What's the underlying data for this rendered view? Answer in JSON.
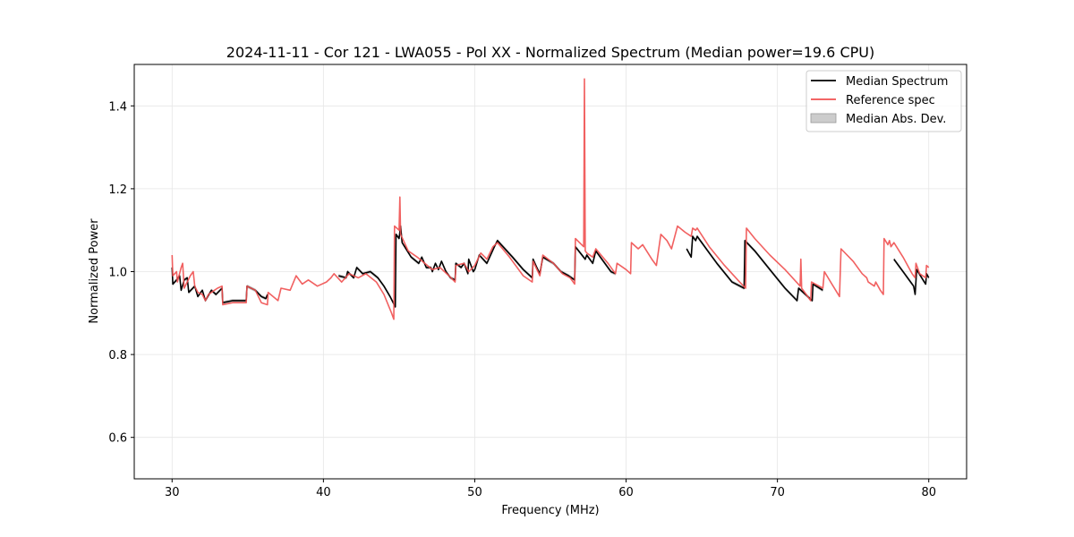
{
  "chart_data": {
    "type": "line",
    "title": "2024-11-11 - Cor 121 - LWA055 - Pol XX - Normalized Spectrum (Median power=19.6 CPU)",
    "xlabel": "Frequency (MHz)",
    "ylabel": "Normalized Power",
    "xlim": [
      27.5,
      82.5
    ],
    "ylim": [
      0.5,
      1.5
    ],
    "xticks": [
      30,
      40,
      50,
      60,
      70,
      80
    ],
    "yticks": [
      0.6,
      0.8,
      1.0,
      1.2,
      1.4
    ],
    "xtick_labels": [
      "30",
      "40",
      "50",
      "60",
      "70",
      "80"
    ],
    "ytick_labels": [
      "0.6",
      "0.8",
      "1.0",
      "1.2",
      "1.4"
    ],
    "grid": true,
    "legend": {
      "position": "upper-right",
      "entries": [
        "Median Spectrum",
        "Reference spec",
        "Median Abs. Dev."
      ]
    },
    "series": [
      {
        "name": "Median Spectrum",
        "color": "#000000",
        "mad": 0.004,
        "segments": [
          [
            [
              30.0,
              1.01
            ],
            [
              30.05,
              0.97
            ],
            [
              30.3,
              0.98
            ],
            [
              30.5,
              0.99
            ],
            [
              30.6,
              0.955
            ],
            [
              30.8,
              0.98
            ],
            [
              31.0,
              0.985
            ],
            [
              31.1,
              0.95
            ],
            [
              31.5,
              0.965
            ],
            [
              31.7,
              0.94
            ],
            [
              32.0,
              0.955
            ],
            [
              32.2,
              0.93
            ],
            [
              32.6,
              0.955
            ],
            [
              32.9,
              0.945
            ],
            [
              33.3,
              0.96
            ],
            [
              33.35,
              0.925
            ],
            [
              34.0,
              0.93
            ],
            [
              34.9,
              0.93
            ],
            [
              34.95,
              0.965
            ],
            [
              35.5,
              0.955
            ],
            [
              35.9,
              0.94
            ],
            [
              36.2,
              0.935
            ],
            [
              36.3,
              0.945
            ]
          ],
          [
            [
              41.0,
              0.99
            ],
            [
              41.5,
              0.985
            ],
            [
              41.6,
              1.0
            ],
            [
              42.0,
              0.985
            ],
            [
              42.2,
              1.01
            ],
            [
              42.6,
              0.995
            ],
            [
              43.1,
              1.0
            ],
            [
              43.6,
              0.985
            ],
            [
              44.0,
              0.965
            ],
            [
              44.4,
              0.94
            ],
            [
              44.75,
              0.915
            ],
            [
              44.8,
              1.09
            ],
            [
              45.0,
              1.08
            ],
            [
              45.1,
              1.11
            ],
            [
              45.2,
              1.07
            ],
            [
              45.8,
              1.035
            ],
            [
              46.3,
              1.02
            ],
            [
              46.5,
              1.035
            ],
            [
              46.8,
              1.01
            ],
            [
              47.1,
              1.01
            ],
            [
              47.2,
              1.0
            ],
            [
              47.4,
              1.02
            ],
            [
              47.6,
              1.005
            ],
            [
              47.8,
              1.025
            ],
            [
              48.1,
              1.0
            ],
            [
              48.4,
              0.985
            ],
            [
              48.7,
              0.98
            ],
            [
              48.75,
              1.02
            ],
            [
              49.1,
              1.01
            ],
            [
              49.3,
              1.02
            ],
            [
              49.55,
              0.995
            ],
            [
              49.6,
              1.03
            ],
            [
              49.9,
              1.0
            ],
            [
              50.0,
              1.005
            ],
            [
              50.3,
              1.04
            ],
            [
              50.8,
              1.02
            ],
            [
              51.3,
              1.06
            ],
            [
              51.5,
              1.075
            ],
            [
              52.5,
              1.035
            ],
            [
              53.2,
              1.005
            ],
            [
              53.8,
              0.985
            ],
            [
              53.85,
              1.03
            ],
            [
              54.1,
              1.01
            ],
            [
              54.3,
              0.995
            ],
            [
              54.5,
              1.035
            ],
            [
              55.2,
              1.02
            ],
            [
              55.7,
              1.0
            ],
            [
              56.2,
              0.99
            ],
            [
              56.6,
              0.98
            ],
            [
              56.65,
              1.06
            ],
            [
              57.3,
              1.03
            ],
            [
              57.4,
              1.04
            ],
            [
              57.8,
              1.02
            ],
            [
              58.0,
              1.05
            ],
            [
              59.0,
              1.0
            ],
            [
              59.3,
              0.995
            ]
          ],
          [
            [
              64.0,
              1.055
            ],
            [
              64.3,
              1.035
            ],
            [
              64.4,
              1.085
            ],
            [
              64.6,
              1.075
            ],
            [
              64.7,
              1.085
            ],
            [
              65.0,
              1.07
            ],
            [
              65.5,
              1.045
            ],
            [
              66.0,
              1.02
            ],
            [
              67.0,
              0.975
            ],
            [
              67.8,
              0.96
            ],
            [
              67.85,
              1.075
            ],
            [
              68.5,
              1.05
            ],
            [
              69.5,
              1.005
            ],
            [
              70.5,
              0.96
            ],
            [
              71.3,
              0.93
            ],
            [
              71.4,
              0.96
            ],
            [
              72.3,
              0.93
            ],
            [
              72.35,
              0.97
            ],
            [
              73.0,
              0.955
            ]
          ],
          [
            [
              77.7,
              1.03
            ],
            [
              78.4,
              0.995
            ],
            [
              79.0,
              0.965
            ],
            [
              79.1,
              0.945
            ],
            [
              79.2,
              1.005
            ],
            [
              79.7,
              0.975
            ],
            [
              79.8,
              0.97
            ],
            [
              79.85,
              0.995
            ],
            [
              80.0,
              0.985
            ]
          ]
        ]
      },
      {
        "name": "Reference spec",
        "color": "#f05050",
        "segments": [
          [
            [
              30.0,
              1.04
            ],
            [
              30.05,
              0.99
            ],
            [
              30.3,
              1.0
            ],
            [
              30.35,
              0.975
            ],
            [
              30.6,
              1.01
            ],
            [
              30.7,
              1.02
            ],
            [
              30.8,
              0.96
            ],
            [
              31.2,
              0.99
            ],
            [
              31.4,
              1.0
            ],
            [
              31.5,
              0.965
            ],
            [
              31.7,
              0.95
            ],
            [
              32.0,
              0.945
            ],
            [
              32.2,
              0.93
            ],
            [
              32.4,
              0.945
            ],
            [
              32.8,
              0.955
            ],
            [
              33.0,
              0.96
            ],
            [
              33.3,
              0.965
            ],
            [
              33.35,
              0.92
            ],
            [
              34.0,
              0.925
            ],
            [
              34.9,
              0.925
            ],
            [
              34.95,
              0.965
            ],
            [
              35.5,
              0.955
            ],
            [
              35.9,
              0.925
            ],
            [
              36.3,
              0.92
            ],
            [
              36.35,
              0.95
            ],
            [
              37.0,
              0.93
            ],
            [
              37.2,
              0.96
            ],
            [
              37.8,
              0.955
            ],
            [
              38.2,
              0.99
            ],
            [
              38.6,
              0.97
            ],
            [
              39.0,
              0.98
            ],
            [
              39.6,
              0.965
            ],
            [
              40.2,
              0.975
            ],
            [
              40.5,
              0.985
            ],
            [
              40.7,
              0.995
            ],
            [
              41.2,
              0.975
            ],
            [
              41.7,
              0.995
            ],
            [
              42.3,
              0.985
            ],
            [
              42.8,
              0.995
            ],
            [
              43.5,
              0.975
            ],
            [
              44.0,
              0.945
            ],
            [
              44.5,
              0.9
            ],
            [
              44.65,
              0.885
            ],
            [
              44.7,
              1.11
            ],
            [
              45.0,
              1.1
            ],
            [
              45.05,
              1.18
            ],
            [
              45.1,
              1.09
            ],
            [
              45.6,
              1.05
            ],
            [
              46.2,
              1.035
            ],
            [
              46.7,
              1.02
            ],
            [
              47.2,
              1.005
            ],
            [
              47.7,
              1.01
            ],
            [
              48.3,
              0.99
            ],
            [
              48.7,
              0.975
            ],
            [
              48.75,
              1.015
            ],
            [
              49.3,
              1.02
            ],
            [
              49.6,
              1.0
            ],
            [
              50.0,
              1.015
            ],
            [
              50.4,
              1.045
            ],
            [
              50.8,
              1.03
            ],
            [
              51.2,
              1.06
            ],
            [
              51.5,
              1.07
            ],
            [
              52.3,
              1.035
            ],
            [
              53.2,
              0.99
            ],
            [
              53.8,
              0.975
            ],
            [
              53.85,
              1.025
            ],
            [
              54.3,
              0.99
            ],
            [
              54.5,
              1.04
            ],
            [
              55.2,
              1.02
            ],
            [
              55.8,
              0.995
            ],
            [
              56.3,
              0.985
            ],
            [
              56.6,
              0.97
            ],
            [
              56.65,
              1.08
            ],
            [
              57.2,
              1.06
            ],
            [
              57.25,
              1.465
            ],
            [
              57.3,
              1.05
            ],
            [
              57.4,
              1.045
            ],
            [
              57.8,
              1.035
            ],
            [
              58.0,
              1.055
            ],
            [
              58.8,
              1.02
            ],
            [
              59.3,
              0.995
            ],
            [
              59.4,
              1.02
            ],
            [
              60.0,
              1.005
            ],
            [
              60.3,
              0.995
            ],
            [
              60.35,
              1.07
            ],
            [
              60.8,
              1.055
            ],
            [
              61.1,
              1.065
            ],
            [
              61.7,
              1.03
            ],
            [
              62.0,
              1.015
            ],
            [
              62.3,
              1.09
            ],
            [
              62.7,
              1.075
            ],
            [
              63.0,
              1.055
            ],
            [
              63.4,
              1.11
            ],
            [
              63.9,
              1.095
            ],
            [
              64.3,
              1.085
            ],
            [
              64.4,
              1.105
            ],
            [
              64.6,
              1.1
            ],
            [
              64.7,
              1.105
            ],
            [
              65.5,
              1.06
            ],
            [
              66.5,
              1.015
            ],
            [
              67.5,
              0.975
            ],
            [
              67.9,
              0.96
            ],
            [
              67.95,
              1.105
            ],
            [
              68.5,
              1.08
            ],
            [
              69.5,
              1.04
            ],
            [
              70.5,
              1.005
            ],
            [
              71.5,
              0.965
            ],
            [
              71.55,
              1.03
            ],
            [
              71.6,
              0.96
            ],
            [
              72.2,
              0.93
            ],
            [
              72.25,
              0.975
            ],
            [
              73.0,
              0.96
            ],
            [
              73.1,
              1.0
            ],
            [
              73.6,
              0.97
            ],
            [
              74.1,
              0.94
            ],
            [
              74.2,
              1.055
            ],
            [
              75.0,
              1.025
            ],
            [
              75.6,
              0.995
            ],
            [
              75.9,
              0.985
            ],
            [
              76.0,
              0.975
            ],
            [
              76.4,
              0.965
            ],
            [
              76.5,
              0.975
            ],
            [
              76.8,
              0.955
            ],
            [
              77.0,
              0.945
            ],
            [
              77.05,
              1.08
            ],
            [
              77.3,
              1.065
            ],
            [
              77.4,
              1.075
            ],
            [
              77.5,
              1.06
            ],
            [
              77.7,
              1.07
            ],
            [
              78.3,
              1.035
            ],
            [
              78.9,
              0.995
            ],
            [
              79.1,
              0.985
            ],
            [
              79.15,
              1.02
            ],
            [
              79.4,
              0.995
            ],
            [
              79.8,
              0.985
            ],
            [
              79.85,
              1.015
            ],
            [
              80.0,
              1.01
            ]
          ]
        ]
      }
    ]
  }
}
